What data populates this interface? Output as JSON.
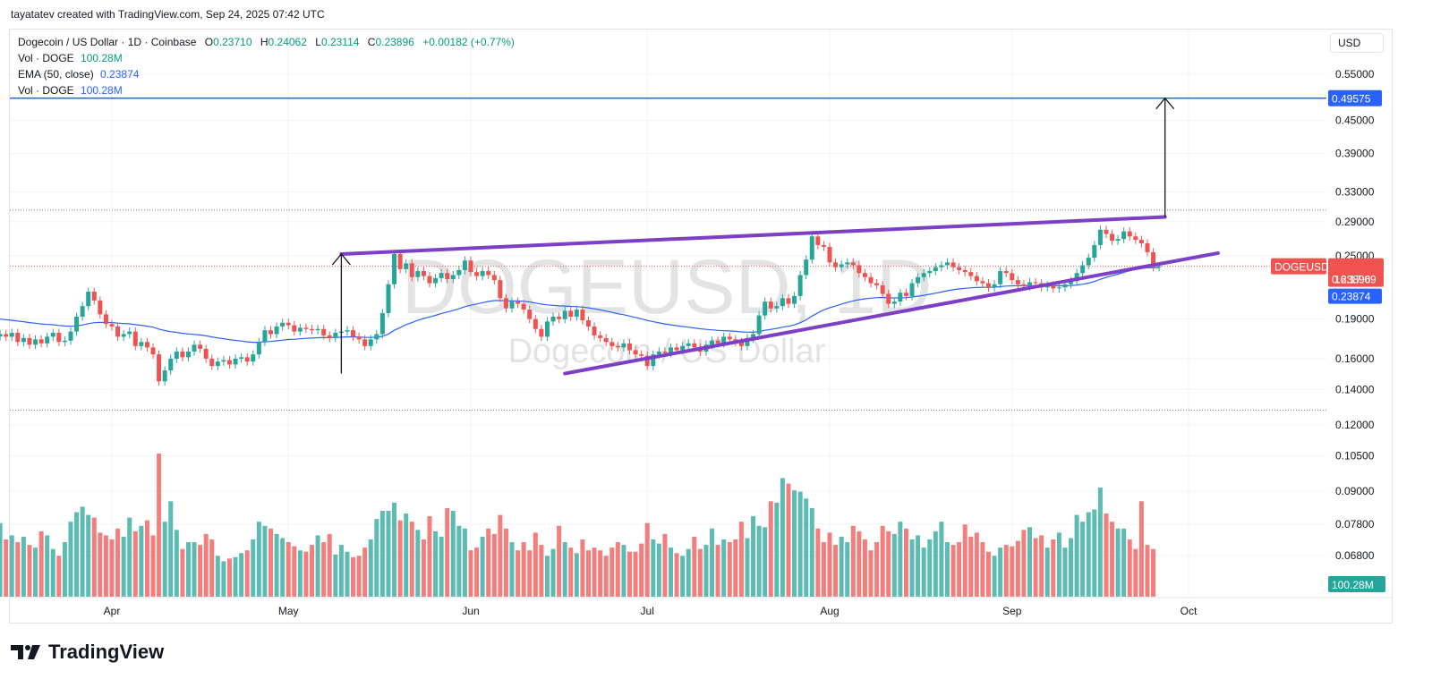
{
  "header": {
    "attribution": "tayatatev created with TradingView.com, Sep 24, 2025 07:42 UTC"
  },
  "legend": {
    "symbol_line": "Dogecoin / US Dollar · 1D · Coinbase",
    "o_label": "O",
    "o_value": "0.23710",
    "h_label": "H",
    "h_value": "0.24062",
    "l_label": "L",
    "l_value": "0.23114",
    "c_label": "C",
    "c_value": "0.23896",
    "change": "+0.00182 (+0.77%)",
    "vol_label": "Vol · DOGE",
    "vol_value": "100.28M",
    "ema_label": "EMA (50, close)",
    "ema_value": "0.23874",
    "vol2_label": "Vol · DOGE",
    "vol2_value": "100.28M"
  },
  "currency_button": "USD",
  "watermark": {
    "symbol": "DOGEUSD, 1D",
    "name": "Dogecoin / US Dollar"
  },
  "brand": {
    "name": "TradingView"
  },
  "colors": {
    "up": "#26a69a",
    "down": "#ef5350",
    "ema": "#2962ff",
    "trendline": "#7e3fc7",
    "target": "#2962ff"
  },
  "chart_data": {
    "type": "candlestick",
    "symbol": "DOGEUSD",
    "timeframe": "1D",
    "exchange": "Coinbase",
    "price_scale": "log",
    "y_ticks": [
      0.55,
      0.45,
      0.39,
      0.33,
      0.29,
      0.25,
      0.19,
      0.16,
      0.14,
      0.12,
      0.105,
      0.09,
      0.078,
      0.068
    ],
    "y_tick_labels": [
      "0.55000",
      "0.45000",
      "0.39000",
      "0.33000",
      "0.29000",
      "0.25000",
      "0.19000",
      "0.16000",
      "0.14000",
      "0.12000",
      "0.10500",
      "0.09000",
      "0.07800",
      "0.06800"
    ],
    "x_labels": [
      "Apr",
      "May",
      "Jun",
      "Jul",
      "Aug",
      "Sep",
      "Oct"
    ],
    "x_label_dates": [
      "2025-04-01",
      "2025-05-01",
      "2025-06-01",
      "2025-07-01",
      "2025-08-01",
      "2025-09-01",
      "2025-10-01"
    ],
    "start_date": "2025-03-13",
    "end_date": "2025-09-24",
    "closes": [
      0.178,
      0.176,
      0.179,
      0.172,
      0.175,
      0.17,
      0.174,
      0.171,
      0.176,
      0.179,
      0.172,
      0.173,
      0.18,
      0.192,
      0.201,
      0.214,
      0.206,
      0.194,
      0.186,
      0.184,
      0.176,
      0.178,
      0.18,
      0.169,
      0.172,
      0.168,
      0.163,
      0.145,
      0.152,
      0.16,
      0.165,
      0.161,
      0.165,
      0.17,
      0.167,
      0.16,
      0.155,
      0.158,
      0.159,
      0.156,
      0.16,
      0.161,
      0.158,
      0.163,
      0.172,
      0.181,
      0.178,
      0.184,
      0.187,
      0.185,
      0.18,
      0.183,
      0.182,
      0.181,
      0.182,
      0.177,
      0.175,
      0.179,
      0.18,
      0.181,
      0.176,
      0.174,
      0.169,
      0.174,
      0.178,
      0.195,
      0.221,
      0.252,
      0.236,
      0.242,
      0.228,
      0.234,
      0.229,
      0.222,
      0.227,
      0.232,
      0.226,
      0.23,
      0.235,
      0.245,
      0.233,
      0.229,
      0.234,
      0.23,
      0.225,
      0.208,
      0.199,
      0.205,
      0.203,
      0.198,
      0.19,
      0.182,
      0.176,
      0.188,
      0.192,
      0.19,
      0.197,
      0.192,
      0.198,
      0.189,
      0.184,
      0.177,
      0.175,
      0.172,
      0.169,
      0.168,
      0.171,
      0.166,
      0.163,
      0.162,
      0.155,
      0.163,
      0.165,
      0.164,
      0.168,
      0.166,
      0.169,
      0.171,
      0.168,
      0.165,
      0.17,
      0.173,
      0.171,
      0.176,
      0.174,
      0.172,
      0.169,
      0.175,
      0.178,
      0.193,
      0.205,
      0.199,
      0.201,
      0.208,
      0.203,
      0.21,
      0.23,
      0.246,
      0.272,
      0.262,
      0.26,
      0.243,
      0.238,
      0.241,
      0.243,
      0.24,
      0.232,
      0.228,
      0.222,
      0.22,
      0.212,
      0.203,
      0.205,
      0.213,
      0.21,
      0.222,
      0.228,
      0.232,
      0.234,
      0.238,
      0.24,
      0.243,
      0.238,
      0.235,
      0.233,
      0.229,
      0.224,
      0.222,
      0.218,
      0.221,
      0.234,
      0.232,
      0.225,
      0.221,
      0.219,
      0.223,
      0.222,
      0.218,
      0.22,
      0.217,
      0.218,
      0.221,
      0.224,
      0.232,
      0.24,
      0.248,
      0.262,
      0.28,
      0.275,
      0.267,
      0.269,
      0.278,
      0.272,
      0.268,
      0.264,
      0.254,
      0.238,
      0.239
    ],
    "volumes": [
      54,
      42,
      45,
      40,
      44,
      38,
      36,
      48,
      45,
      35,
      30,
      40,
      55,
      62,
      66,
      60,
      58,
      47,
      45,
      42,
      50,
      44,
      58,
      48,
      52,
      56,
      45,
      105,
      55,
      70,
      49,
      35,
      40,
      40,
      38,
      46,
      42,
      30,
      26,
      28,
      29,
      32,
      34,
      42,
      55,
      52,
      50,
      46,
      43,
      40,
      37,
      34,
      33,
      38,
      45,
      40,
      46,
      31,
      38,
      33,
      29,
      30,
      36,
      42,
      57,
      63,
      63,
      69,
      56,
      61,
      55,
      49,
      42,
      59,
      48,
      44,
      65,
      63,
      52,
      50,
      34,
      36,
      44,
      50,
      46,
      60,
      50,
      40,
      34,
      40,
      34,
      47,
      38,
      30,
      35,
      52,
      40,
      36,
      32,
      42,
      34,
      36,
      34,
      30,
      36,
      40,
      38,
      33,
      33,
      39,
      54,
      42,
      39,
      46,
      36,
      32,
      30,
      35,
      44,
      35,
      38,
      50,
      38,
      42,
      40,
      42,
      55,
      43,
      59,
      52,
      51,
      70,
      69,
      87,
      83,
      78,
      77,
      72,
      65,
      50,
      40,
      47,
      38,
      44,
      40,
      52,
      48,
      42,
      34,
      40,
      52,
      48,
      46,
      55,
      50,
      42,
      45,
      36,
      42,
      48,
      55,
      40,
      38,
      40,
      53,
      44,
      47,
      40,
      33,
      30,
      36,
      38,
      37,
      41,
      49,
      51,
      43,
      45,
      36,
      42,
      47,
      36,
      43,
      60,
      55,
      62,
      64,
      80,
      61,
      55,
      50,
      50,
      42,
      35,
      70,
      38,
      35
    ],
    "ema50_last": 0.23874,
    "last_price": 0.23896,
    "last_price_label": "0.23896",
    "ema_label": "0.23874",
    "countdown": "16:17:09",
    "symbol_tag": "DOGEUSD",
    "volume_last_label": "100.28M",
    "target_price": 0.49575,
    "target_label": "0.49575",
    "upper_dotted_level": 0.305,
    "lower_dotted_level": 0.128,
    "annotations": [
      {
        "type": "trendline",
        "name": "upper-resistance",
        "from": {
          "date": "2025-05-10",
          "price": 0.252
        },
        "to": {
          "date": "2025-09-27",
          "price": 0.296
        }
      },
      {
        "type": "trendline",
        "name": "lower-support",
        "from": {
          "date": "2025-06-17",
          "price": 0.15
        },
        "to": {
          "date": "2025-10-06",
          "price": 0.253
        }
      },
      {
        "type": "arrow",
        "name": "pole-arrow",
        "from": {
          "date": "2025-05-10",
          "price": 0.15
        },
        "to": {
          "date": "2025-05-10",
          "price": 0.252
        }
      },
      {
        "type": "arrow",
        "name": "target-arrow",
        "from": {
          "date": "2025-09-27",
          "price": 0.296
        },
        "to": {
          "date": "2025-09-27",
          "price": 0.49575
        }
      }
    ]
  }
}
